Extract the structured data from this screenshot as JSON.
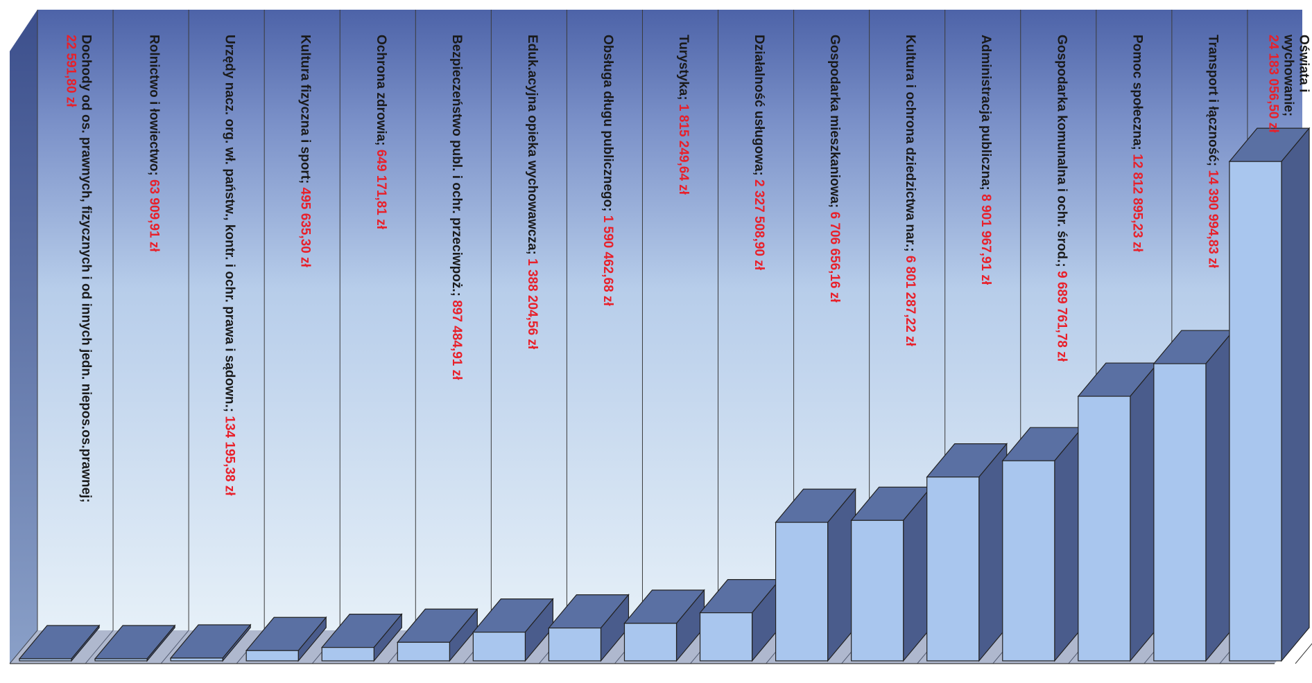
{
  "chart_data": {
    "type": "bar",
    "orientation": "vertical-3d",
    "label_rotation": "90deg",
    "ylim": [
      0,
      26000000
    ],
    "grid": true,
    "legend": "none",
    "colors": {
      "bar_front": "#a9c6ee",
      "bar_top": "#5a70a3",
      "bar_side": "#4a5c8c",
      "category_text": "#1a1a1a",
      "value_text": "#e8202a",
      "wall_top": "#4d63a8",
      "wall_bottom": "#dceaf6",
      "floor": "#6e7ea6"
    },
    "bars": [
      {
        "label": "Dochody od os. prawnych, fizycznych i od innych jedn. niepos.os.prawnej;",
        "value_text": "22 591,80 zł",
        "value": 22591.8
      },
      {
        "label": "Rolnictwo i łowiectwo;",
        "value_text": "63 909,91 zł",
        "value": 63909.91
      },
      {
        "label": "Urzędy nacz. org. wł. państw., kontr. i ochr. prawa i sądown.;",
        "value_text": "134 195,38 zł",
        "value": 134195.38
      },
      {
        "label": "Kultura fizyczna i sport;",
        "value_text": "495 635,30 zł",
        "value": 495635.3
      },
      {
        "label": "Ochrona zdrowia;",
        "value_text": "649 171,81 zł",
        "value": 649171.81
      },
      {
        "label": "Bezpieczeństwo publ. i ochr. przeciwpoż.;",
        "value_text": "897 484,91 zł",
        "value": 897484.91
      },
      {
        "label": "Eduk.acyjna opieka wychowawcza;",
        "value_text": "1 388 204,56 zł",
        "value": 1388204.56
      },
      {
        "label": "Obsługa długu publicznego;",
        "value_text": "1 590 462,68 zł",
        "value": 1590462.68
      },
      {
        "label": "Turystyka;",
        "value_text": "1 815 249,64 zł",
        "value": 1815249.64
      },
      {
        "label": "Działalność usługowa;",
        "value_text": "2 327 508,90 zł",
        "value": 2327508.9
      },
      {
        "label": "Gospodarka mieszkaniowa;",
        "value_text": "6 706 656,16 zł",
        "value": 6706656.16
      },
      {
        "label": "Kultura i ochrona dziedzictwa nar.;",
        "value_text": "6 801 287,22 zł",
        "value": 6801287.22
      },
      {
        "label": "Administracja publiczna;",
        "value_text": "8 901 967,91 zł",
        "value": 8901967.91
      },
      {
        "label": "Gospodarka komunalna i ochr. środ.;",
        "value_text": "9 689 761,78 zł",
        "value": 9689761.78
      },
      {
        "label": "Pomoc społeczna;",
        "value_text": "12 812 895,23 zł",
        "value": 12812895.23
      },
      {
        "label": "Transport i łączność;",
        "value_text": "14 390 994,83 zł",
        "value": 14390994.83
      },
      {
        "label": "Oświata i wychowanie;",
        "value_text": "24 183 056,50 zł",
        "value": 24183056.5
      }
    ]
  }
}
